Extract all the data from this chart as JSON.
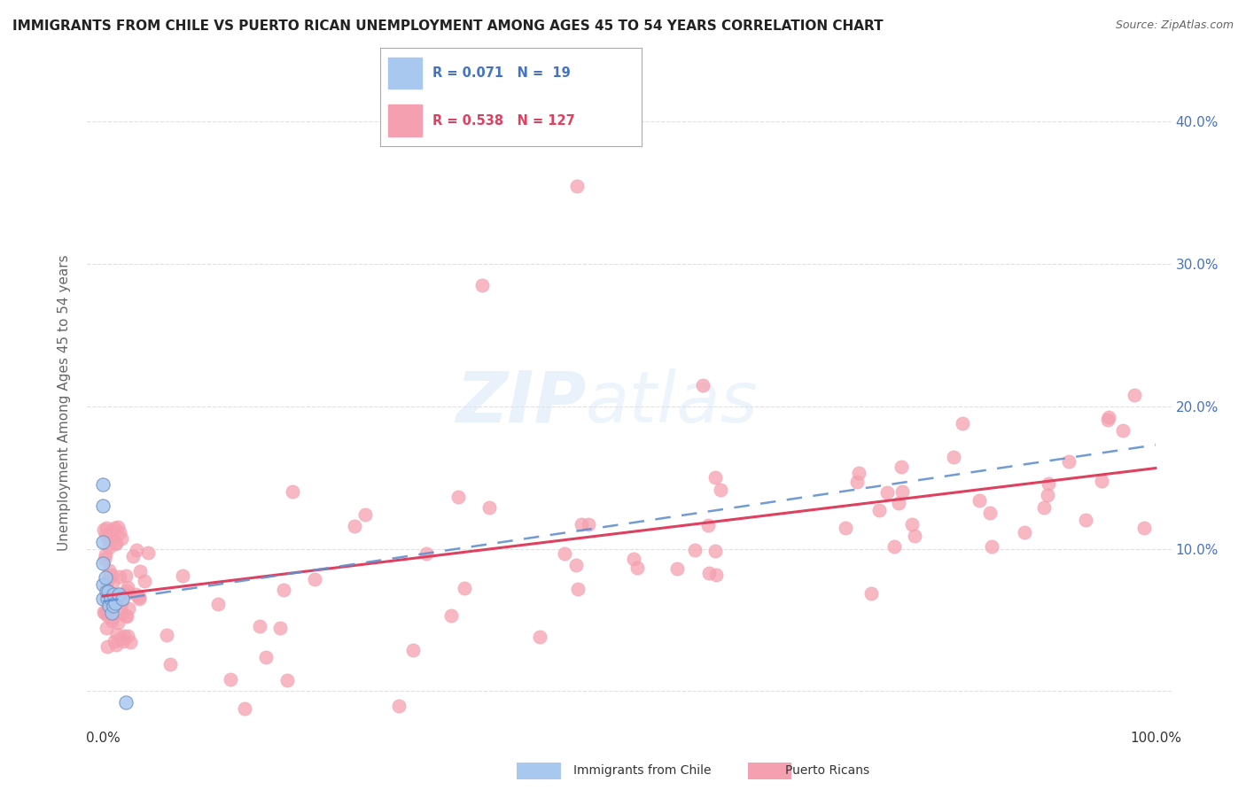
{
  "title": "IMMIGRANTS FROM CHILE VS PUERTO RICAN UNEMPLOYMENT AMONG AGES 45 TO 54 YEARS CORRELATION CHART",
  "source": "Source: ZipAtlas.com",
  "ylabel": "Unemployment Among Ages 45 to 54 years",
  "xlim": [
    0,
    1.0
  ],
  "ylim": [
    -0.025,
    0.43
  ],
  "yticks": [
    0.0,
    0.1,
    0.2,
    0.3,
    0.4
  ],
  "ytick_labels": [
    "",
    "10.0%",
    "20.0%",
    "30.0%",
    "40.0%"
  ],
  "legend_text_1": "R = 0.071   N =  19",
  "legend_text_2": "R = 0.538   N = 127",
  "color_chile": "#a8c8f0",
  "color_pr": "#f5a0b0",
  "color_line_chile": "#6090d0",
  "color_line_pr": "#e04060",
  "watermark_zip": "ZIP",
  "watermark_atlas": "atlas",
  "background_color": "#ffffff",
  "grid_color": "#cccccc",
  "title_color": "#222222",
  "source_color": "#666666",
  "ylabel_color": "#666666",
  "tick_color": "#4472c4",
  "bottom_legend_chile": "Immigrants from Chile",
  "bottom_legend_pr": "Puerto Ricans"
}
